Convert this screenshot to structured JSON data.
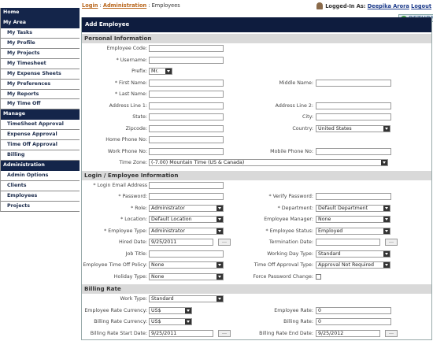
{
  "breadcrumb": {
    "items": [
      "Login",
      "Administration",
      "Employees"
    ],
    "separator": ":"
  },
  "user": {
    "prefix": "Logged-In As:",
    "name": "Deepika Arora",
    "logout": "Logout"
  },
  "return_button": "RETURN",
  "sidebar": [
    {
      "text": "Home",
      "header": true
    },
    {
      "text": "My Area",
      "header": true
    },
    {
      "text": "My Tasks"
    },
    {
      "text": "My Profile"
    },
    {
      "text": "My Projects"
    },
    {
      "text": "My Timesheet"
    },
    {
      "text": "My Expense Sheets"
    },
    {
      "text": "My Preferences"
    },
    {
      "text": "My Reports"
    },
    {
      "text": "My Time Off"
    },
    {
      "text": "Manage",
      "header": true
    },
    {
      "text": "TimeSheet Approval"
    },
    {
      "text": "Expense Approval"
    },
    {
      "text": "Time Off Approval"
    },
    {
      "text": "Billing"
    },
    {
      "text": "Administration",
      "header": true
    },
    {
      "text": "Admin Options"
    },
    {
      "text": "Clients"
    },
    {
      "text": "Employees"
    },
    {
      "text": "Projects"
    }
  ],
  "form": {
    "title": "Add Employee",
    "sections": [
      {
        "title": "Personal Information",
        "rows": [
          {
            "left": {
              "label": "Employee Code:",
              "input": "text"
            }
          },
          {
            "left": {
              "label": "* Username:",
              "input": "text"
            }
          },
          {
            "left": {
              "label": "Prefix:",
              "input": "select",
              "value": "Mr.",
              "size": "small"
            }
          },
          {
            "left": {
              "label": "* First Name:",
              "input": "text"
            },
            "right": {
              "label": "Middle Name:",
              "input": "text"
            }
          },
          {
            "left": {
              "label": "* Last Name:",
              "input": "text"
            }
          },
          {
            "left": {
              "label": "Address Line 1:",
              "input": "text"
            },
            "right": {
              "label": "Address Line 2:",
              "input": "text"
            }
          },
          {
            "left": {
              "label": "State:",
              "input": "text"
            },
            "right": {
              "label": "City:",
              "input": "text"
            }
          },
          {
            "left": {
              "label": "Zipcode:",
              "input": "text"
            },
            "right": {
              "label": "Country:",
              "input": "select",
              "value": "United States"
            }
          },
          {
            "left": {
              "label": "Home Phone No:",
              "input": "text"
            }
          },
          {
            "left": {
              "label": "Work Phone No:",
              "input": "text"
            },
            "right": {
              "label": "Mobile Phone No:",
              "input": "text"
            }
          },
          {
            "left": {
              "label": "Time Zone:",
              "input": "select",
              "value": "(-7.00) Mountain Time (US & Canada)",
              "size": "wide"
            }
          }
        ]
      },
      {
        "title": "Login / Employee Information",
        "rows": [
          {
            "left": {
              "label": "* Login Email Address",
              "input": "text"
            }
          },
          {
            "left": {
              "label": "* Password:",
              "input": "text"
            },
            "right": {
              "label": "* Verify Password:",
              "input": "text"
            }
          },
          {
            "left": {
              "label": "* Role:",
              "input": "select",
              "value": "Administrator"
            },
            "right": {
              "label": "* Department:",
              "input": "select",
              "value": "Default Department"
            }
          },
          {
            "left": {
              "label": "* Location:",
              "input": "select",
              "value": "Default Location"
            },
            "right": {
              "label": "Employee Manager:",
              "input": "select",
              "value": "None"
            }
          },
          {
            "left": {
              "label": "* Employee Type:",
              "input": "select",
              "value": "Administrator"
            },
            "right": {
              "label": "* Employee Status:",
              "input": "select",
              "value": "Employed"
            }
          },
          {
            "left": {
              "label": "Hired Date:",
              "input": "date",
              "value": "9/25/2011",
              "button": "..."
            },
            "right": {
              "label": "Termination Date:",
              "input": "date",
              "button": "..."
            }
          },
          {
            "left": {
              "label": "Job Title:",
              "input": "text"
            },
            "right": {
              "label": "Working Day Type:",
              "input": "select",
              "value": "Standard"
            }
          },
          {
            "left": {
              "label": "Employee Time Off Policy:",
              "input": "select",
              "value": "None"
            },
            "right": {
              "label": "Time Off Approval Type:",
              "input": "select",
              "value": "Approval Not Required"
            }
          },
          {
            "left": {
              "label": "Holiday Type:",
              "input": "select",
              "value": "None"
            },
            "right": {
              "label": "Force Password Change:",
              "input": "checkbox"
            }
          }
        ]
      },
      {
        "title": "Billing Rate",
        "rows": [
          {
            "left": {
              "label": "Work Type:",
              "input": "select",
              "value": "Standard"
            }
          },
          {
            "left": {
              "label": "Employee Rate Currency:",
              "input": "select",
              "value": "US$",
              "size": "medium"
            },
            "right": {
              "label": "Employee Rate:",
              "input": "text",
              "value": "0"
            }
          },
          {
            "left": {
              "label": "Billing Rate Currency:",
              "input": "select",
              "value": "US$",
              "size": "medium"
            },
            "right": {
              "label": "Billing Rate:",
              "input": "text",
              "value": "0"
            }
          },
          {
            "left": {
              "label": "Billing Rate Start Date:",
              "input": "date",
              "value": "9/25/2011",
              "button": "..."
            },
            "right": {
              "label": "Billing Rate End Date:",
              "input": "date",
              "value": "9/25/2012",
              "button": "..."
            }
          }
        ]
      }
    ]
  }
}
